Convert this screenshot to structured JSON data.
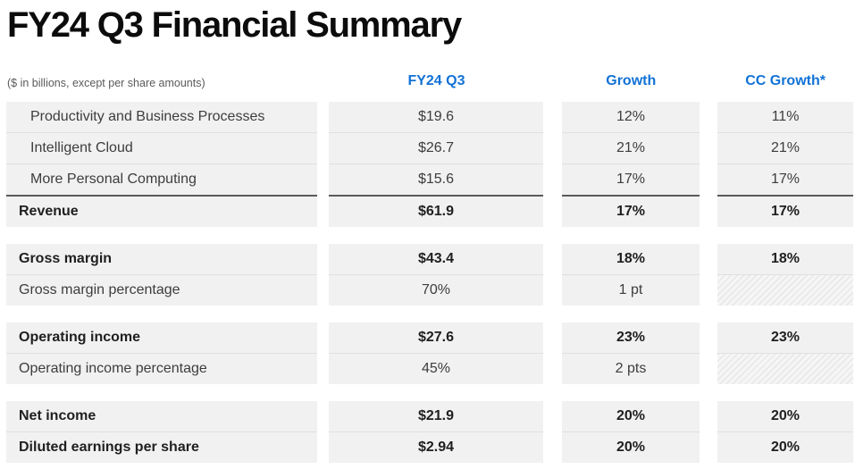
{
  "page": {
    "title": "FY24 Q3 Financial Summary"
  },
  "colors": {
    "accent_blue": "#1272d6",
    "row_background": "#f1f1f1",
    "total_rule": "#5a5a5a",
    "row_separator": "#e0e0e0"
  },
  "chart_data": {
    "type": "table",
    "title": "FY24 Q3 Financial Summary",
    "note": "($ in billions, except per share amounts)",
    "columns": [
      "",
      "FY24 Q3",
      "Growth",
      "CC Growth*"
    ],
    "rows": [
      [
        "Productivity and Business Processes",
        "$19.6",
        "12%",
        "11%"
      ],
      [
        "Intelligent Cloud",
        "$26.7",
        "21%",
        "21%"
      ],
      [
        "More Personal Computing",
        "$15.6",
        "17%",
        "17%"
      ],
      [
        "Revenue",
        "$61.9",
        "17%",
        "17%"
      ],
      [
        "Gross margin",
        "$43.4",
        "18%",
        "18%"
      ],
      [
        "Gross margin percentage",
        "70%",
        "1 pt",
        ""
      ],
      [
        "Operating income",
        "$27.6",
        "23%",
        "23%"
      ],
      [
        "Operating income percentage",
        "45%",
        "2 pts",
        ""
      ],
      [
        "Net income",
        "$21.9",
        "20%",
        "20%"
      ],
      [
        "Diluted earnings per share",
        "$2.94",
        "20%",
        "20%"
      ]
    ]
  },
  "table": {
    "headers": {
      "note": "($ in billions, except per share amounts)",
      "fy": "FY24 Q3",
      "growth": "Growth",
      "cc": "CC Growth*"
    },
    "sections": [
      {
        "rows": [
          {
            "label": "Productivity and Business Processes",
            "fy": "$19.6",
            "growth": "12%",
            "cc": "11%"
          },
          {
            "label": "Intelligent Cloud",
            "fy": "$26.7",
            "growth": "21%",
            "cc": "21%"
          },
          {
            "label": "More Personal Computing",
            "fy": "$15.6",
            "growth": "17%",
            "cc": "17%"
          },
          {
            "label": "Revenue",
            "fy": "$61.9",
            "growth": "17%",
            "cc": "17%"
          }
        ]
      },
      {
        "rows": [
          {
            "label": "Gross margin",
            "fy": "$43.4",
            "growth": "18%",
            "cc": "18%"
          },
          {
            "label": "Gross margin percentage",
            "fy": "70%",
            "growth": "1 pt",
            "cc": ""
          }
        ]
      },
      {
        "rows": [
          {
            "label": "Operating income",
            "fy": "$27.6",
            "growth": "23%",
            "cc": "23%"
          },
          {
            "label": "Operating income percentage",
            "fy": "45%",
            "growth": "2 pts",
            "cc": ""
          }
        ]
      },
      {
        "rows": [
          {
            "label": "Net income",
            "fy": "$21.9",
            "growth": "20%",
            "cc": "20%"
          },
          {
            "label": "Diluted earnings per share",
            "fy": "$2.94",
            "growth": "20%",
            "cc": "20%"
          }
        ]
      }
    ]
  }
}
